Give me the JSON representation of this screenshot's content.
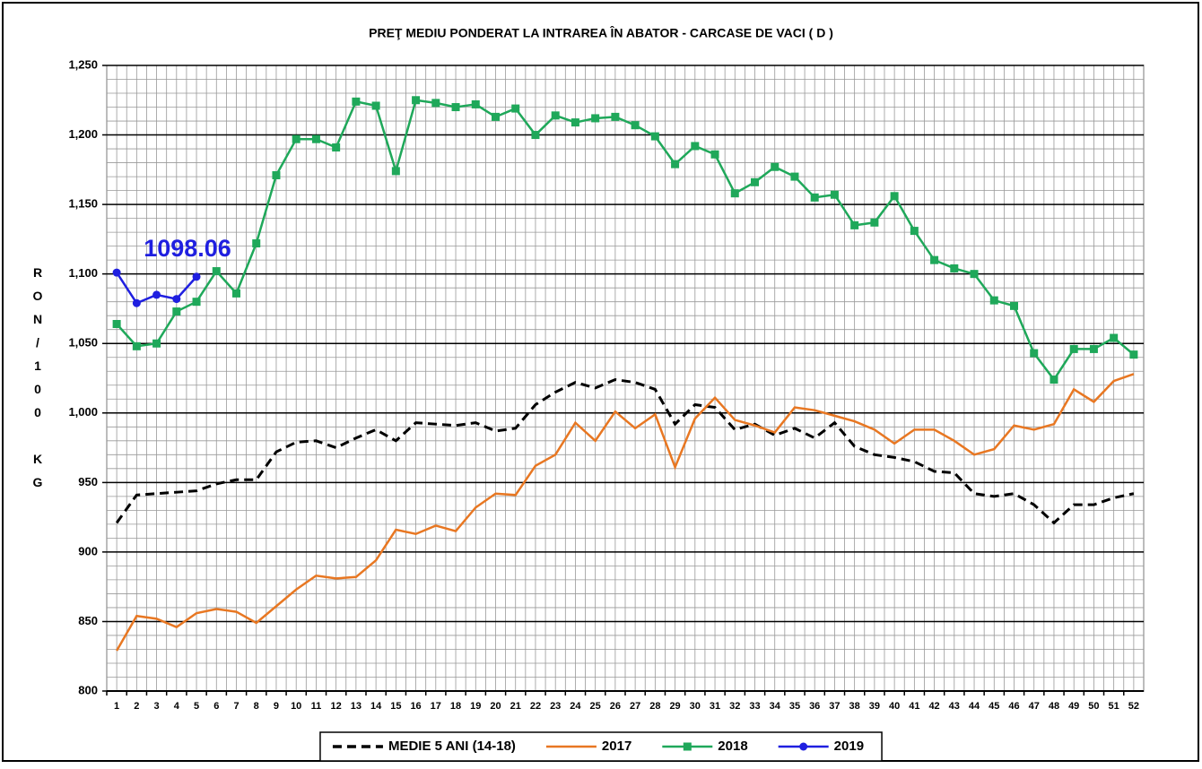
{
  "chart_data": {
    "type": "line",
    "title": "PREŢ MEDIU PONDERAT LA INTRAREA ÎN ABATOR - CARCASE DE VACI ( D )",
    "y_label": "RON/100 KG",
    "annotation": {
      "text": "1098.06",
      "series": 3,
      "index": 4,
      "color": "#1f1fe0"
    },
    "categories": [
      "1",
      "2",
      "3",
      "4",
      "5",
      "6",
      "7",
      "8",
      "9",
      "10",
      "11",
      "12",
      "13",
      "14",
      "15",
      "16",
      "17",
      "18",
      "19",
      "20",
      "21",
      "22",
      "23",
      "24",
      "25",
      "26",
      "27",
      "28",
      "29",
      "30",
      "31",
      "32",
      "33",
      "34",
      "35",
      "36",
      "37",
      "38",
      "39",
      "40",
      "41",
      "42",
      "43",
      "44",
      "45",
      "46",
      "47",
      "48",
      "49",
      "50",
      "51",
      "52"
    ],
    "series": [
      {
        "name": "MEDIE 5 ANI (14-18)",
        "color": "#000000",
        "dash": true,
        "marker": null,
        "values": [
          921,
          941,
          942,
          943,
          944,
          949,
          952,
          952,
          972,
          979,
          980,
          975,
          982,
          988,
          980,
          993,
          992,
          991,
          993,
          987,
          989,
          1006,
          1015,
          1022,
          1018,
          1024,
          1022,
          1017,
          992,
          1006,
          1004,
          988,
          992,
          984,
          989,
          982,
          993,
          976,
          970,
          968,
          965,
          958,
          957,
          942,
          940,
          942,
          934,
          921,
          934,
          934,
          939,
          942
        ]
      },
      {
        "name": "2017",
        "color": "#e87722",
        "dash": false,
        "marker": null,
        "values": [
          829,
          854,
          852,
          846,
          856,
          859,
          857,
          849,
          861,
          873,
          883,
          881,
          882,
          894,
          916,
          913,
          919,
          915,
          932,
          942,
          941,
          962,
          970,
          993,
          980,
          1001,
          989,
          999,
          961,
          996,
          1011,
          995,
          991,
          986,
          1004,
          1002,
          998,
          994,
          988,
          978,
          988,
          988,
          980,
          970,
          974,
          991,
          988,
          992,
          1017,
          1008,
          1023,
          1028
        ]
      },
      {
        "name": "2018",
        "color": "#1fa85a",
        "dash": false,
        "marker": "square",
        "values": [
          1064,
          1048,
          1050,
          1073,
          1080,
          1102,
          1086,
          1122,
          1171,
          1197,
          1197,
          1191,
          1224,
          1221,
          1174,
          1225,
          1223,
          1220,
          1222,
          1213,
          1219,
          1200,
          1214,
          1209,
          1212,
          1213,
          1207,
          1199,
          1179,
          1192,
          1186,
          1158,
          1166,
          1177,
          1170,
          1155,
          1157,
          1135,
          1137,
          1156,
          1131,
          1110,
          1104,
          1100,
          1081,
          1077,
          1043,
          1024,
          1046,
          1046,
          1054,
          1042
        ]
      },
      {
        "name": "2019",
        "color": "#1f1fe0",
        "dash": false,
        "marker": "circle",
        "values": [
          1101,
          1079,
          1085,
          1082,
          1098,
          null,
          null,
          null,
          null,
          null,
          null,
          null,
          null,
          null,
          null,
          null,
          null,
          null,
          null,
          null,
          null,
          null,
          null,
          null,
          null,
          null,
          null,
          null,
          null,
          null,
          null,
          null,
          null,
          null,
          null,
          null,
          null,
          null,
          null,
          null,
          null,
          null,
          null,
          null,
          null,
          null,
          null,
          null,
          null,
          null,
          null,
          null
        ]
      }
    ],
    "ylim": [
      800,
      1250
    ],
    "yticks": [
      {
        "value": 800,
        "label": "800"
      },
      {
        "value": 850,
        "label": "850"
      },
      {
        "value": 900,
        "label": "900"
      },
      {
        "value": 950,
        "label": "950"
      },
      {
        "value": 1000,
        "label": "1,000"
      },
      {
        "value": 1050,
        "label": "1,050"
      },
      {
        "value": 1100,
        "label": "1,100"
      },
      {
        "value": 1150,
        "label": "1,150"
      },
      {
        "value": 1200,
        "label": "1,200"
      },
      {
        "value": 1250,
        "label": "1,250"
      }
    ],
    "grid": true,
    "legend": "bottom"
  }
}
